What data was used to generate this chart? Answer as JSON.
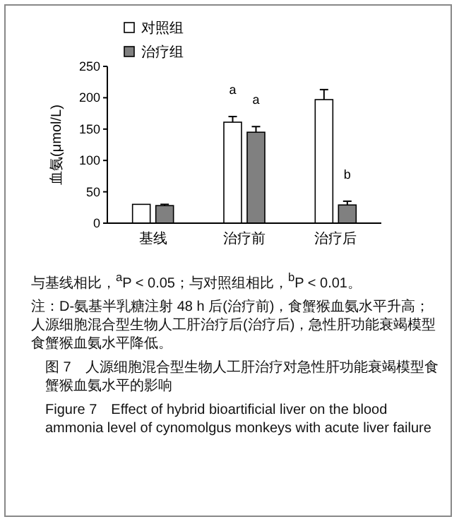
{
  "chart_data": {
    "type": "bar",
    "categories": [
      "基线",
      "治疗前",
      "治疗后"
    ],
    "series": [
      {
        "name": "对照组",
        "color": "#ffffff",
        "values": [
          30,
          161,
          197
        ],
        "errors": [
          null,
          [
            161,
            170
          ],
          [
            197,
            213
          ]
        ]
      },
      {
        "name": "治疗组",
        "color": "#808080",
        "values": [
          28,
          145,
          29
        ],
        "errors": [
          [
            28,
            30
          ],
          [
            145,
            154
          ],
          [
            29,
            35
          ]
        ]
      }
    ],
    "ylabel": "血氨(μmol/L)",
    "ylim": [
      0,
      250
    ],
    "yticks": [
      0,
      50,
      100,
      150,
      200,
      250
    ],
    "legend": "top left",
    "annotations": [
      {
        "text": "a",
        "x": "治疗前",
        "y": 161
      },
      {
        "text": "a",
        "x": "治疗前",
        "y": 145
      },
      {
        "text": "b",
        "x": "治疗后",
        "y": 29
      },
      "与基线相比，$^{a}$P < 0.05；与对照组相比，$^{b}$P < 0.01。",
      "注：D-氨基半乳糖注射 48 h 后(治疗前)，食蟹猴血氨水平升高；人源细胞混合型生物人工肝治疗后(治疗后)，急性肝功能衰竭模型食蟹猴血氨水平降低。",
      "图 7　人源细胞混合型生物人工肝治疗对急性肝功能衰竭模型食蟹猴血氨水平的影响",
      "Figure 7　Effect of hybrid bioartificial liver on the blood ammonia level of cynomolgus monkeys with acute liver failure"
    ]
  }
}
